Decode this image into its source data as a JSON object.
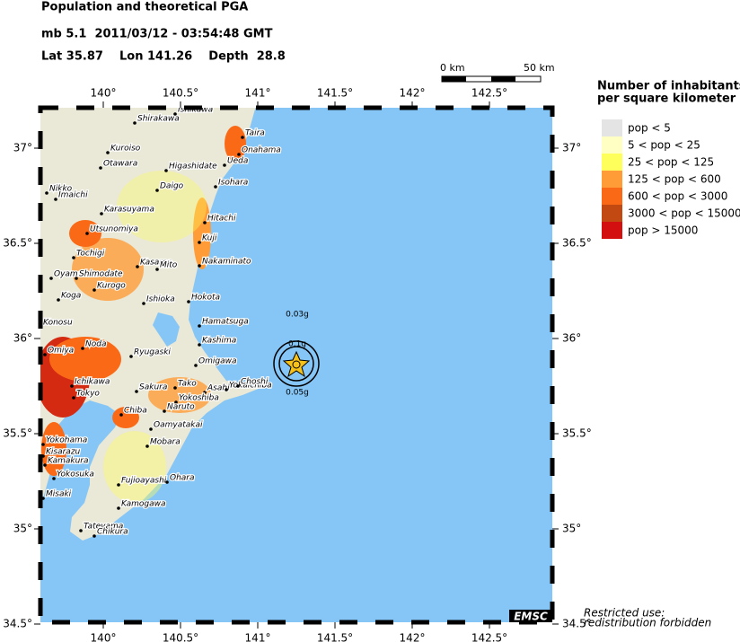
{
  "header": {
    "title": "Population and theoretical PGA",
    "event": "mb 5.1  2011/03/12 - 03:54:48 GMT",
    "location": "Lat 35.87    Lon 141.26    Depth  28.8"
  },
  "scale_bar": {
    "start": "0 km",
    "end": "50 km"
  },
  "map": {
    "lon_ticks": [
      {
        "value": 140,
        "label": "140°"
      },
      {
        "value": 140.5,
        "label": "140.5°"
      },
      {
        "value": 141,
        "label": "141°"
      },
      {
        "value": 141.5,
        "label": "141.5°"
      },
      {
        "value": 142,
        "label": "142°"
      },
      {
        "value": 142.5,
        "label": "142.5°"
      }
    ],
    "lat_ticks": [
      {
        "value": 34.5,
        "label": "34.5°"
      },
      {
        "value": 35,
        "label": "35°"
      },
      {
        "value": 35.5,
        "label": "35.5°"
      },
      {
        "value": 36,
        "label": "36°"
      },
      {
        "value": 36.5,
        "label": "36.5°"
      },
      {
        "value": 37,
        "label": "37°"
      }
    ],
    "cities": [
      "Shirakawa",
      "Ishikawa",
      "Kuroiso",
      "Otawara",
      "Taira",
      "Onahama",
      "Higashidate",
      "Ueda",
      "Daigo",
      "Isohara",
      "Nikko",
      "Imaichi",
      "Karasuyama",
      "Hitachi",
      "Utsunomiya",
      "Kuji",
      "Tochigi",
      "Kasama",
      "Mito",
      "Nakaminato",
      "Oyama",
      "Shimodate",
      "Kurogo",
      "Koga",
      "Ishioka",
      "Hokota",
      "Konosu",
      "Hamatsuga",
      "Omiya",
      "Noda",
      "Kashima",
      "Ryugaski",
      "Omigawa",
      "Ichikawa",
      "Tokyo",
      "Sakura",
      "Tako",
      "Asahi",
      "Yokaichiba",
      "Choshi",
      "Yokoshiba",
      "Naruto",
      "Chiba",
      "Oamyatakai",
      "Mobara",
      "Yokohama",
      "Kisarazu",
      "Kamakura",
      "Yokosuka",
      "Fujioayashi",
      "Ohara",
      "Misaki",
      "Kamogawa",
      "Tateyama",
      "Chikura"
    ],
    "pga_contours": [
      "0.1g",
      "0.03g",
      "0.05g"
    ],
    "badge": "EMSC"
  },
  "legend": {
    "title": [
      "Number of inhabitants",
      "per square kilometer"
    ],
    "entries": [
      {
        "label": "pop < 5",
        "color": "#e4e4e4"
      },
      {
        "label": "5 < pop < 25",
        "color": "#ffffc4"
      },
      {
        "label": "25 < pop < 125",
        "color": "#ffff5c"
      },
      {
        "label": "125 < pop < 600",
        "color": "#ff9c38"
      },
      {
        "label": "600 < pop < 3000",
        "color": "#fa6a16"
      },
      {
        "label": "3000 < pop < 15000",
        "color": "#c24a12"
      },
      {
        "label": "pop > 15000",
        "color": "#d40f0f"
      }
    ]
  },
  "footer": [
    "Restricted use:",
    "redistribution forbidden"
  ]
}
